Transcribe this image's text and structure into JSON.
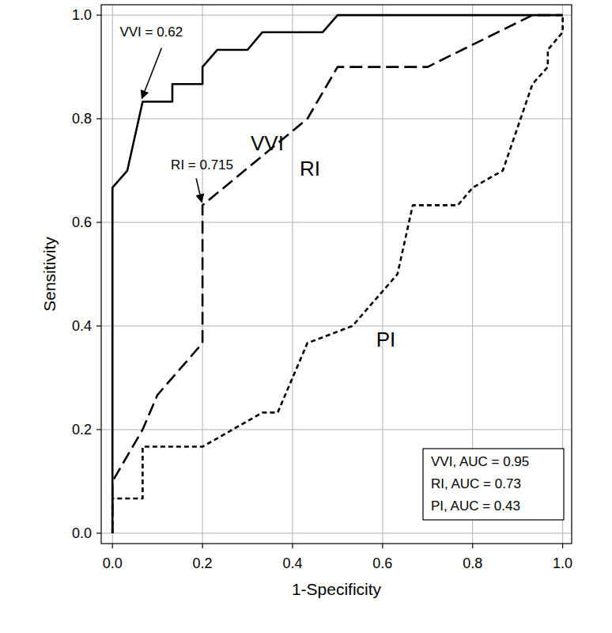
{
  "chart_data": {
    "type": "line",
    "x_label": "1-Specificity",
    "y_label": "Sensitivity",
    "xlim": [
      -0.025,
      1.02
    ],
    "ylim": [
      -0.02,
      1.02
    ],
    "xticks": [
      {
        "value": 0,
        "label": "0.0"
      },
      0.2,
      0.4,
      0.6,
      0.8,
      {
        "value": 1,
        "label": "1.0"
      }
    ],
    "yticks": [
      {
        "value": 0,
        "label": "0.0"
      },
      0.2,
      0.4,
      0.6,
      0.8,
      {
        "value": 1,
        "label": "1.0"
      }
    ],
    "grid": true,
    "legend": "lower right",
    "series": [
      {
        "name": "VVI",
        "color": "#000000",
        "line_style": "solid",
        "legend_label": "VVI, AUC = 0.95",
        "x": [
          0,
          0,
          0.033,
          0.067,
          0.133,
          0.133,
          0.2,
          0.2,
          0.233,
          0.3,
          0.333,
          0.467,
          0.5,
          1.0
        ],
        "values": [
          0,
          0.667,
          0.7,
          0.833,
          0.833,
          0.867,
          0.867,
          0.9,
          0.933,
          0.933,
          0.967,
          0.967,
          1.0,
          1.0
        ]
      },
      {
        "name": "RI",
        "color": "#000000",
        "line_style": "dashed",
        "legend_label": "RI, AUC = 0.73",
        "x": [
          0,
          0,
          0.067,
          0.1,
          0.2,
          0.2,
          0.433,
          0.5,
          0.7,
          0.933,
          1.0
        ],
        "values": [
          0,
          0.1,
          0.2,
          0.267,
          0.367,
          0.633,
          0.8,
          0.9,
          0.9,
          1.0,
          1.0
        ]
      },
      {
        "name": "PI",
        "color": "#000000",
        "line_style": "dotted",
        "legend_label": "PI, AUC = 0.43",
        "x": [
          0,
          0,
          0.067,
          0.067,
          0.2,
          0.267,
          0.333,
          0.367,
          0.433,
          0.533,
          0.633,
          0.667,
          0.767,
          0.8,
          0.867,
          0.933,
          0.967,
          0.967,
          1.0,
          1.0
        ],
        "values": [
          0,
          0.067,
          0.067,
          0.167,
          0.167,
          0.2,
          0.233,
          0.233,
          0.367,
          0.4,
          0.5,
          0.633,
          0.633,
          0.667,
          0.7,
          0.867,
          0.9,
          0.933,
          0.967,
          1.0
        ]
      }
    ],
    "annotations": [
      {
        "text": "VVI = 0.62",
        "x": 0.067,
        "y": 0.833
      },
      {
        "text": "RI = 0.715",
        "x": 0.2,
        "y": 0.633
      }
    ]
  }
}
